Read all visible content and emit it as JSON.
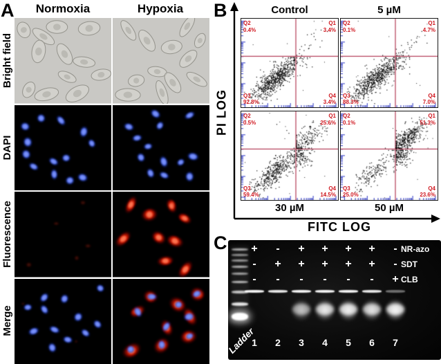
{
  "panelA": {
    "label": "A",
    "columns": [
      "Normoxia",
      "Hypoxia"
    ],
    "rows": [
      "Bright field",
      "DAPI",
      "Fluorescence",
      "Merge"
    ]
  },
  "panelB": {
    "label": "B",
    "y_axis": "PI LOG",
    "x_axis": "FITC LOG",
    "accent_colors": {
      "quadrant_line": "#b43a55",
      "quadrant_text": "#d01820",
      "tick": "#2b36c2"
    },
    "plots": [
      {
        "title": "Control",
        "q1": {
          "name": "Q1",
          "pct": "3.4%"
        },
        "q2": {
          "name": "Q2",
          "pct": "0.4%"
        },
        "q3": {
          "name": "Q3",
          "pct": "92.8%"
        },
        "q4": {
          "name": "Q4",
          "pct": "3.4%"
        }
      },
      {
        "title": "5 µM",
        "q1": {
          "name": "Q1",
          "pct": "4.7%"
        },
        "q2": {
          "name": "Q2",
          "pct": "0.1%"
        },
        "q3": {
          "name": "Q3",
          "pct": "88.3%"
        },
        "q4": {
          "name": "Q4",
          "pct": "7.0%"
        }
      },
      {
        "title": "30 µM",
        "q1": {
          "name": "Q1",
          "pct": "25.6%"
        },
        "q2": {
          "name": "Q2",
          "pct": "0.5%"
        },
        "q3": {
          "name": "Q3",
          "pct": "59.4%"
        },
        "q4": {
          "name": "Q4",
          "pct": "14.5%"
        }
      },
      {
        "title": "50 µM",
        "q1": {
          "name": "Q1",
          "pct": "51.3%"
        },
        "q2": {
          "name": "Q2",
          "pct": "0.1%"
        },
        "q3": {
          "name": "Q3",
          "pct": "25.0%"
        },
        "q4": {
          "name": "Q4",
          "pct": "23.6%"
        }
      }
    ]
  },
  "panelC": {
    "label": "C",
    "reagent_rows": [
      {
        "label": "NR-azo",
        "signs": [
          "+",
          "-",
          "+",
          "+",
          "+",
          "+",
          "-"
        ]
      },
      {
        "label": "SDT",
        "signs": [
          "-",
          "+",
          "+",
          "+",
          "+",
          "+",
          "-"
        ]
      },
      {
        "label": "CLB",
        "signs": [
          "-",
          "-",
          "-",
          "-",
          "-",
          "-",
          "+"
        ]
      }
    ],
    "ladder_label": "Ladder",
    "lane_numbers": [
      "1",
      "2",
      "3",
      "4",
      "5",
      "6",
      "7"
    ]
  },
  "chart_data": [
    {
      "type": "scatter",
      "title": "Control",
      "xlabel": "FITC LOG",
      "ylabel": "PI LOG",
      "quadrant_percent": {
        "Q1": 3.4,
        "Q2": 0.4,
        "Q3": 92.8,
        "Q4": 3.4
      }
    },
    {
      "type": "scatter",
      "title": "5 µM",
      "xlabel": "FITC LOG",
      "ylabel": "PI LOG",
      "quadrant_percent": {
        "Q1": 4.7,
        "Q2": 0.1,
        "Q3": 88.3,
        "Q4": 7.0
      }
    },
    {
      "type": "scatter",
      "title": "30 µM",
      "xlabel": "FITC LOG",
      "ylabel": "PI LOG",
      "quadrant_percent": {
        "Q1": 25.6,
        "Q2": 0.5,
        "Q3": 59.4,
        "Q4": 14.5
      }
    },
    {
      "type": "scatter",
      "title": "50 µM",
      "xlabel": "FITC LOG",
      "ylabel": "PI LOG",
      "quadrant_percent": {
        "Q1": 51.3,
        "Q2": 0.1,
        "Q3": 25.0,
        "Q4": 23.6
      }
    }
  ]
}
